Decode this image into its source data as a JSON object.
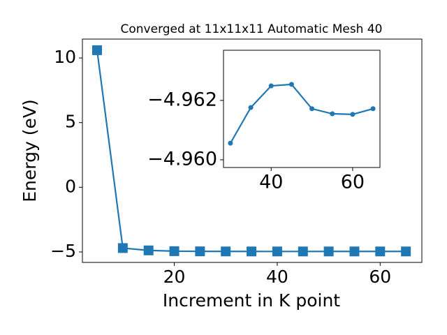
{
  "chart_data": [
    {
      "type": "line",
      "title": "Converged at 11x11x11 Automatic Mesh 40",
      "xlabel": "Increment in K point",
      "ylabel": "Energy (eV)",
      "x": [
        5,
        10,
        15,
        20,
        25,
        30,
        35,
        40,
        45,
        50,
        55,
        60,
        65
      ],
      "series": [
        {
          "color": "#1f77b4",
          "marker": "square",
          "values": [
            10.6,
            -4.7,
            -4.88,
            -4.94,
            -4.955,
            -4.96056,
            -4.96176,
            -4.96249,
            -4.96254,
            -4.96172,
            -4.96155,
            -4.96153,
            -4.96172
          ]
        }
      ],
      "xlim": [
        2.15,
        68.1
      ],
      "ylim": [
        -5.81,
        11.46
      ],
      "xticks": [
        20,
        40,
        60
      ],
      "yticks": [
        {
          "value": -5,
          "label": "−5"
        },
        0,
        5,
        10
      ]
    },
    {
      "type": "line",
      "x": [
        30,
        35,
        40,
        45,
        50,
        55,
        60,
        65
      ],
      "series": [
        {
          "color": "#1f77b4",
          "marker": "circle",
          "values": [
            -4.96056,
            -4.96176,
            -4.96249,
            -4.96254,
            -4.96172,
            -4.96155,
            -4.96153,
            -4.96172
          ]
        }
      ],
      "xlim": [
        28.3,
        66.7
      ],
      "ylim": [
        -4.95974,
        -4.96369
      ],
      "xticks": [
        40,
        60
      ],
      "yticks": [
        {
          "value": -4.962,
          "label": "−4.962"
        },
        {
          "value": -4.96,
          "label": "−4.960"
        }
      ]
    }
  ]
}
